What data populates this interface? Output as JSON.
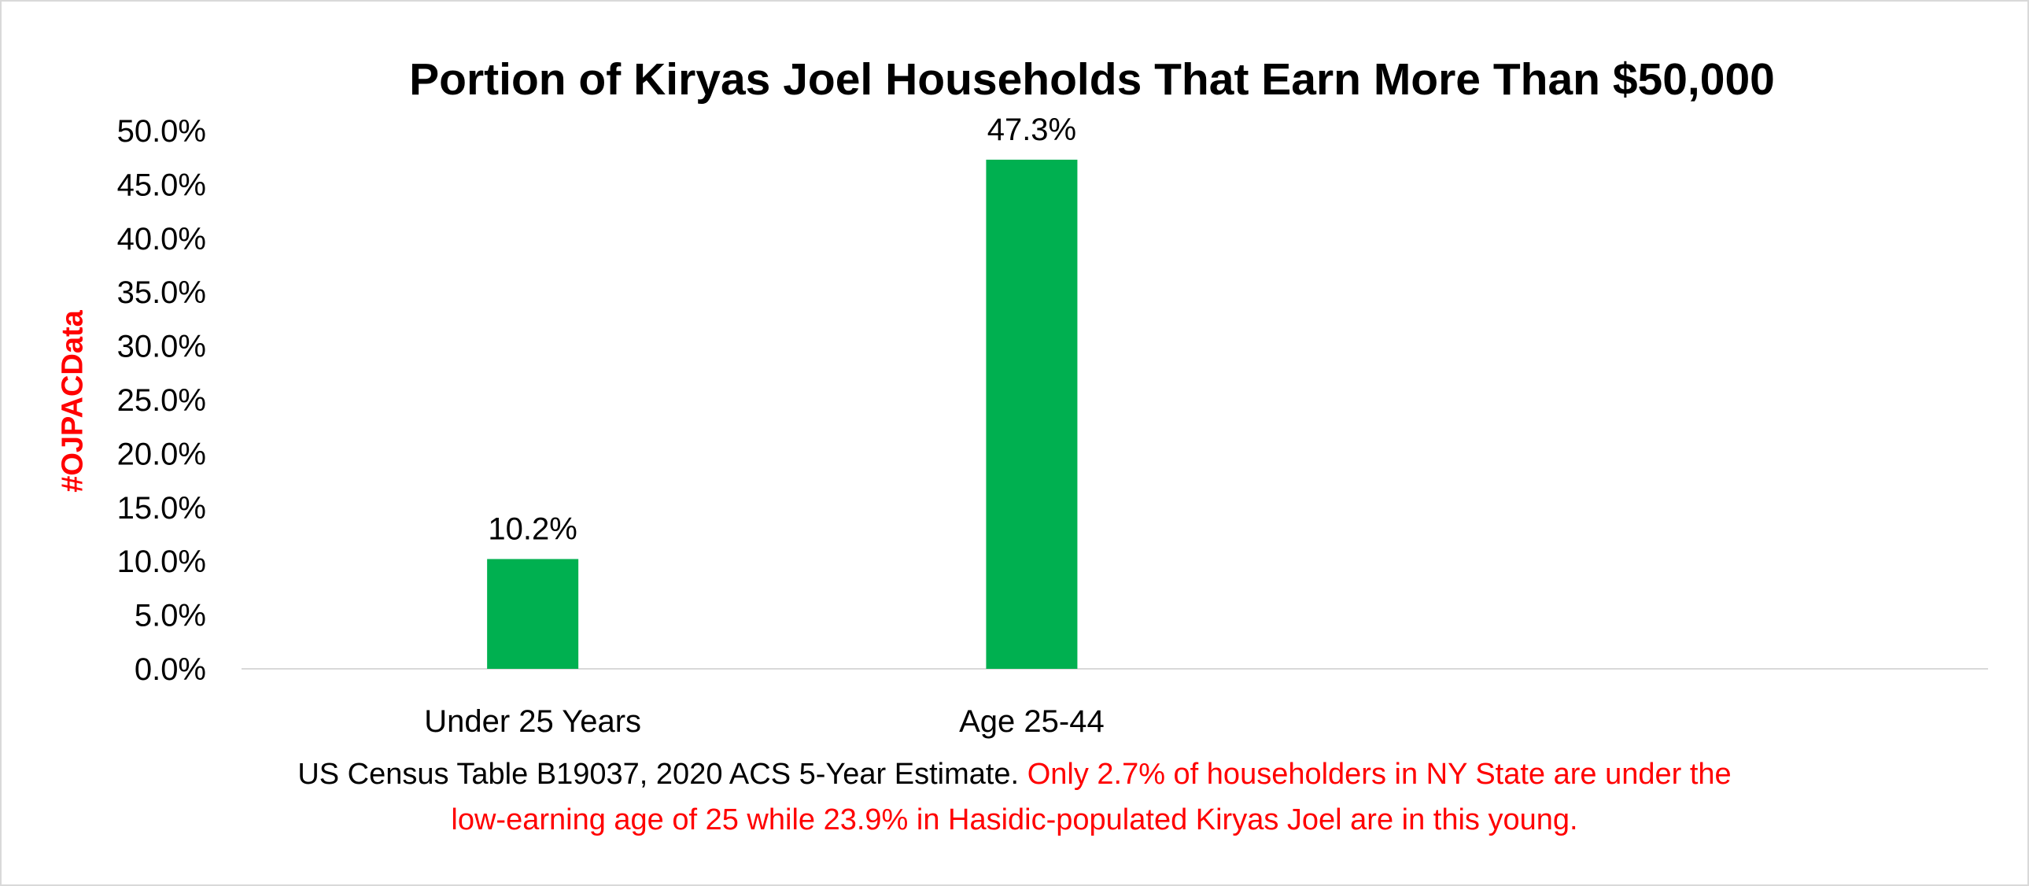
{
  "chart_data": {
    "type": "bar",
    "title": "Portion of Kiryas Joel Households That Earn More Than $50,000",
    "categories": [
      "Under 25 Years",
      "Age 25-44"
    ],
    "values": [
      10.2,
      47.3
    ],
    "value_labels": [
      "10.2%",
      "47.3%"
    ],
    "xlabel": "",
    "ylabel": "",
    "ylim": [
      0,
      50
    ],
    "y_ticks": [
      "0.0%",
      "5.0%",
      "10.0%",
      "15.0%",
      "20.0%",
      "25.0%",
      "30.0%",
      "35.0%",
      "40.0%",
      "45.0%",
      "50.0%"
    ],
    "grid": false,
    "legend": "none",
    "bar_color": "#00B050"
  },
  "watermark": {
    "text": "#OJPACData",
    "color": "#FF0000"
  },
  "footnote": {
    "source_text": "US Census Table B19037, 2020 ACS 5-Year Estimate.",
    "note_line1": "Only 2.7% of householders in NY State are under the",
    "note_line2": "low-earning age of 25 while 23.9% in Hasidic-populated Kiryas Joel are in this young.",
    "note_color": "#FF0000"
  }
}
